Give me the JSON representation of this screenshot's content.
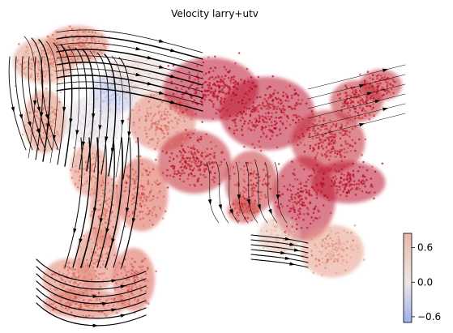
{
  "chart_data": {
    "type": "scatter",
    "title": "Velocity larry+utv",
    "xlabel": "",
    "ylabel": "",
    "grid": false,
    "legend": "none",
    "colorbar": {
      "placement": "bottom-right",
      "range": [
        -0.7,
        0.85
      ],
      "ticks": [
        0.6,
        0.0,
        -0.6
      ],
      "tick_labels": [
        "0.6",
        "0.0",
        "−0.6"
      ],
      "colormap": "coolwarm",
      "color_low": "#9bb1f0",
      "color_mid": "#ede7e6",
      "color_high": "#b40426"
    },
    "overlay": "streamlines with arrowheads (velocity field)"
  }
}
